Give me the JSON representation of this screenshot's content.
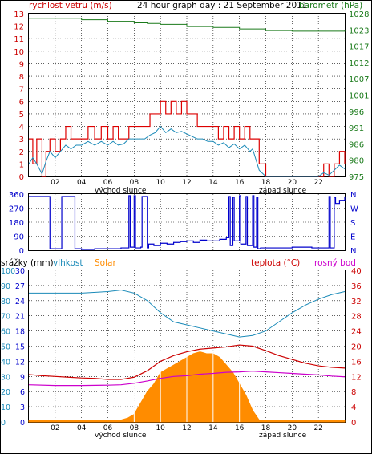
{
  "title": "24 hour graph day : 21 September 2011",
  "colors": {
    "wind": "#dd0000",
    "gust": "#dd0000",
    "wind_avg": "#1a8ab8",
    "baro": "#1a7a1a",
    "dir": "#0000cc",
    "humidity": "#1a8ab8",
    "solar": "#ff8c00",
    "temp": "#cc0000",
    "dew": "#cc00cc",
    "rain_axis": "#0000cc",
    "grid": "#000000"
  },
  "x_ticks": [
    "02",
    "04",
    "06",
    "08",
    "10",
    "12",
    "14",
    "16",
    "18",
    "20",
    "22"
  ],
  "sunrise_label": "východ slunce",
  "sunset_label": "západ slunce",
  "chart_data": [
    {
      "type": "line",
      "name": "wind-baro",
      "left_label": "rychlost vetru (m/s)",
      "right_label": "barometr (hPa)",
      "left_ticks": [
        "13",
        "12",
        "11",
        "10",
        "9",
        "8",
        "7",
        "6",
        "5",
        "4",
        "3",
        "2",
        "1",
        "0"
      ],
      "right_ticks": [
        "1028",
        "1023",
        "1017",
        "1012",
        "1007",
        "1001",
        "996",
        "991",
        "986",
        "980",
        "975"
      ],
      "ylim_left": [
        0,
        13
      ],
      "ylim_right": [
        975,
        1028
      ],
      "x_range_hours": [
        0,
        24
      ],
      "series": [
        {
          "key": "gust",
          "x": [
            0,
            0.3,
            0.6,
            1,
            1.3,
            1.6,
            2,
            2.4,
            2.8,
            3.2,
            3.6,
            4,
            4.5,
            5,
            5.5,
            6,
            6.4,
            6.8,
            7.2,
            7.6,
            8,
            8.4,
            8.8,
            9.2,
            9.6,
            10,
            10.4,
            10.8,
            11.2,
            11.6,
            12,
            12.4,
            12.8,
            13.2,
            13.6,
            14,
            14.4,
            14.8,
            15.2,
            15.6,
            16,
            16.4,
            16.8,
            17,
            17.5,
            18,
            19,
            20,
            21,
            22,
            22.4,
            22.8,
            23.2,
            23.6,
            24
          ],
          "y": [
            3,
            1,
            3,
            0,
            2,
            3,
            2,
            3,
            4,
            3,
            3,
            3,
            4,
            3,
            4,
            3,
            4,
            3,
            3,
            4,
            4,
            4,
            4,
            5,
            5,
            6,
            5,
            6,
            5,
            6,
            5,
            5,
            4,
            4,
            4,
            4,
            3,
            4,
            3,
            4,
            3,
            4,
            3,
            3,
            1,
            0,
            0,
            0,
            0,
            0,
            1,
            0,
            1,
            2,
            1
          ]
        },
        {
          "key": "wind_avg",
          "x": [
            0,
            0.3,
            0.6,
            1,
            1.3,
            1.6,
            2,
            2.4,
            2.8,
            3.2,
            3.6,
            4,
            4.5,
            5,
            5.5,
            6,
            6.4,
            6.8,
            7.2,
            7.6,
            8,
            8.4,
            8.8,
            9.2,
            9.6,
            10,
            10.4,
            10.8,
            11.2,
            11.6,
            12,
            12.4,
            12.8,
            13.2,
            13.6,
            14,
            14.4,
            14.8,
            15.2,
            15.6,
            16,
            16.4,
            16.8,
            17,
            17.5,
            18,
            19,
            20,
            21,
            22,
            22.4,
            22.8,
            23.2,
            23.6,
            24
          ],
          "y": [
            1,
            1.5,
            1,
            0.2,
            1.2,
            2,
            1.5,
            2,
            2.5,
            2.2,
            2.5,
            2.5,
            2.8,
            2.5,
            2.8,
            2.5,
            2.8,
            2.5,
            2.6,
            3,
            3,
            3,
            3,
            3.3,
            3.5,
            4,
            3.5,
            3.8,
            3.5,
            3.6,
            3.4,
            3.2,
            3,
            3,
            2.8,
            2.8,
            2.5,
            2.7,
            2.3,
            2.6,
            2.2,
            2.5,
            2,
            2.2,
            0.5,
            0,
            0,
            0,
            0,
            0,
            0.3,
            0.1,
            0.5,
            0.9,
            0.6
          ]
        },
        {
          "key": "baro",
          "x": [
            0,
            2,
            4,
            5.5,
            6,
            7,
            8,
            9,
            10,
            11,
            12,
            14,
            16,
            18,
            20,
            22,
            24
          ],
          "y": [
            1026.5,
            1026.5,
            1026,
            1026,
            1025.5,
            1025.5,
            1025,
            1024.8,
            1024.5,
            1024.5,
            1023.8,
            1023.5,
            1023,
            1022.5,
            1022.3,
            1022.3,
            1022.5
          ]
        }
      ]
    },
    {
      "type": "line",
      "name": "wind-direction",
      "left_ticks": [
        "360",
        "270",
        "180",
        "90",
        "0"
      ],
      "right_ticks": [
        "N",
        "W",
        "S",
        "E",
        "N"
      ],
      "ylim": [
        0,
        360
      ],
      "x_range_hours": [
        0,
        24
      ],
      "series": [
        {
          "key": "dir",
          "x": [
            0,
            1.5,
            1.6,
            2.4,
            2.5,
            3.5,
            4,
            5,
            6,
            7,
            7.6,
            7.7,
            8.0,
            8.1,
            8.5,
            8.6,
            9,
            9.1,
            9.5,
            10,
            10.5,
            11,
            11.5,
            12,
            12.5,
            13,
            13.5,
            14,
            14.5,
            15,
            15.2,
            15.3,
            15.5,
            15.6,
            16,
            16.1,
            16.5,
            16.6,
            17,
            17.1,
            17.3,
            17.4,
            17.6,
            18,
            19,
            20,
            21,
            21.5,
            22,
            22.5,
            22.8,
            22.9,
            23.2,
            23.3,
            23.6,
            24
          ],
          "y": [
            345,
            345,
            10,
            10,
            345,
            10,
            5,
            10,
            10,
            15,
            350,
            20,
            350,
            15,
            20,
            345,
            15,
            40,
            30,
            45,
            40,
            50,
            55,
            60,
            50,
            65,
            60,
            60,
            70,
            80,
            345,
            30,
            340,
            60,
            350,
            40,
            345,
            30,
            350,
            20,
            340,
            10,
            15,
            15,
            15,
            20,
            20,
            15,
            15,
            15,
            345,
            15,
            340,
            300,
            320,
            345
          ]
        }
      ]
    },
    {
      "type": "line",
      "name": "rain-hum-temp",
      "left_label": "srážky (mm)",
      "hum_label": "vlhkost",
      "solar_label": "Solar",
      "right_label": "teplota (°C)",
      "dew_label": "rosný bod",
      "rain_ticks": [
        "30",
        "27",
        "24",
        "21",
        "18",
        "15",
        "12",
        "9",
        "6",
        "3",
        "0"
      ],
      "hum_ticks": [
        "100",
        "90",
        "80",
        "70",
        "60",
        "50",
        "40",
        "30",
        "20",
        "10",
        "0"
      ],
      "temp_ticks": [
        "40",
        "36",
        "32",
        "28",
        "24",
        "20",
        "16",
        "12",
        "8",
        "4",
        "0"
      ],
      "ylim_temp": [
        0,
        40
      ],
      "ylim_hum": [
        0,
        100
      ],
      "x_range_hours": [
        0,
        24
      ],
      "series": [
        {
          "key": "humidity",
          "x": [
            0,
            2,
            4,
            6,
            7,
            8,
            9,
            10,
            11,
            12,
            13,
            14,
            15,
            16,
            17,
            18,
            19,
            20,
            21,
            22,
            23,
            24
          ],
          "y": [
            85,
            85,
            85,
            86,
            87,
            85,
            80,
            72,
            66,
            64,
            62,
            60,
            58,
            56,
            57,
            60,
            66,
            72,
            77,
            81,
            84,
            86
          ]
        },
        {
          "key": "solar",
          "x": [
            0,
            6.5,
            7,
            7.5,
            8,
            8.5,
            9,
            9.5,
            10,
            10.5,
            11,
            11.5,
            12,
            12.5,
            13,
            13.5,
            14,
            14.5,
            15,
            15.5,
            16,
            16.5,
            17,
            17.5,
            18,
            24
          ],
          "y": [
            0.5,
            0.5,
            0.5,
            1,
            2,
            5,
            8,
            10,
            13,
            14,
            15,
            16,
            17,
            18,
            18.5,
            18,
            18,
            17,
            15,
            13,
            10,
            7,
            3,
            0.5,
            0.5,
            0.5
          ]
        },
        {
          "key": "temp",
          "x": [
            0,
            1,
            2,
            3,
            4,
            5,
            6,
            7,
            8,
            9,
            10,
            11,
            12,
            13,
            14,
            15,
            16,
            17,
            18,
            19,
            20,
            21,
            22,
            23,
            24
          ],
          "y": [
            12.5,
            12.2,
            12,
            11.8,
            11.6,
            11.5,
            11.2,
            11.2,
            11.8,
            13.5,
            16,
            17.5,
            18.5,
            19.2,
            19.5,
            19.8,
            20.3,
            20,
            18.8,
            17.5,
            16.5,
            15.5,
            14.8,
            14.4,
            14.2
          ]
        },
        {
          "key": "dew",
          "x": [
            0,
            2,
            4,
            6,
            7,
            8,
            9,
            10,
            11,
            12,
            13,
            14,
            15,
            16,
            17,
            18,
            19,
            20,
            21,
            22,
            23,
            24
          ],
          "y": [
            9.8,
            9.6,
            9.6,
            9.7,
            9.8,
            10.2,
            10.8,
            11.5,
            12,
            12.2,
            12.6,
            12.8,
            13.1,
            13.2,
            13.4,
            13.2,
            13,
            12.8,
            12.6,
            12.4,
            12.1,
            11.9
          ]
        }
      ]
    }
  ]
}
